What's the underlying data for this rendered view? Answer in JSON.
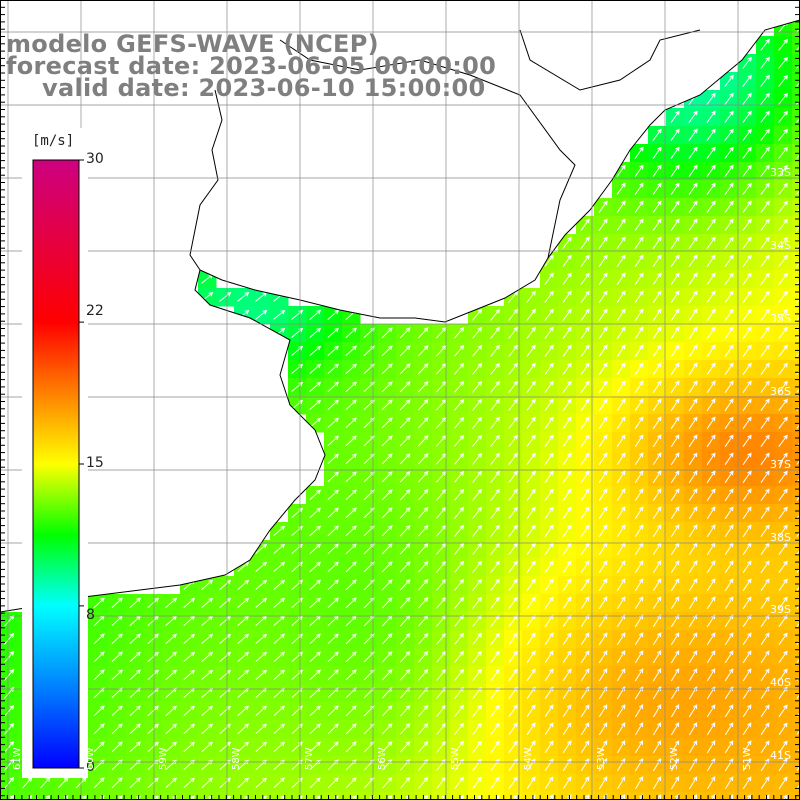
{
  "title": {
    "line1": "modelo GEFS-WAVE (NCEP)",
    "line2": "forecast date: 2023-06-05 00:00:00",
    "line3": "valid date: 2023-06-10 15:00:00"
  },
  "colorbar": {
    "unit": "[m/s]",
    "ticks": [
      "30",
      "22",
      "15",
      "8",
      "0"
    ],
    "tick_values": [
      30,
      22,
      15,
      8,
      0
    ],
    "min": 0,
    "max": 30,
    "colors": [
      "#0000ff",
      "#0080ff",
      "#00ffff",
      "#00ff00",
      "#ffff00",
      "#ff8000",
      "#ff0000",
      "#cc0080"
    ]
  },
  "map": {
    "variable": "wind speed",
    "lat_labels": [
      "33S",
      "34S",
      "35S",
      "36S",
      "37S",
      "38S",
      "39S",
      "40S",
      "41S"
    ],
    "lon_labels": [
      "61W",
      "60W",
      "59W",
      "58W",
      "57W",
      "56W",
      "55W",
      "54W",
      "53W",
      "52W",
      "51W"
    ],
    "grid": true,
    "vector_field": "wind direction arrows (toward NE)",
    "land_color": "#ffffff",
    "coastline_color": "#000000"
  }
}
